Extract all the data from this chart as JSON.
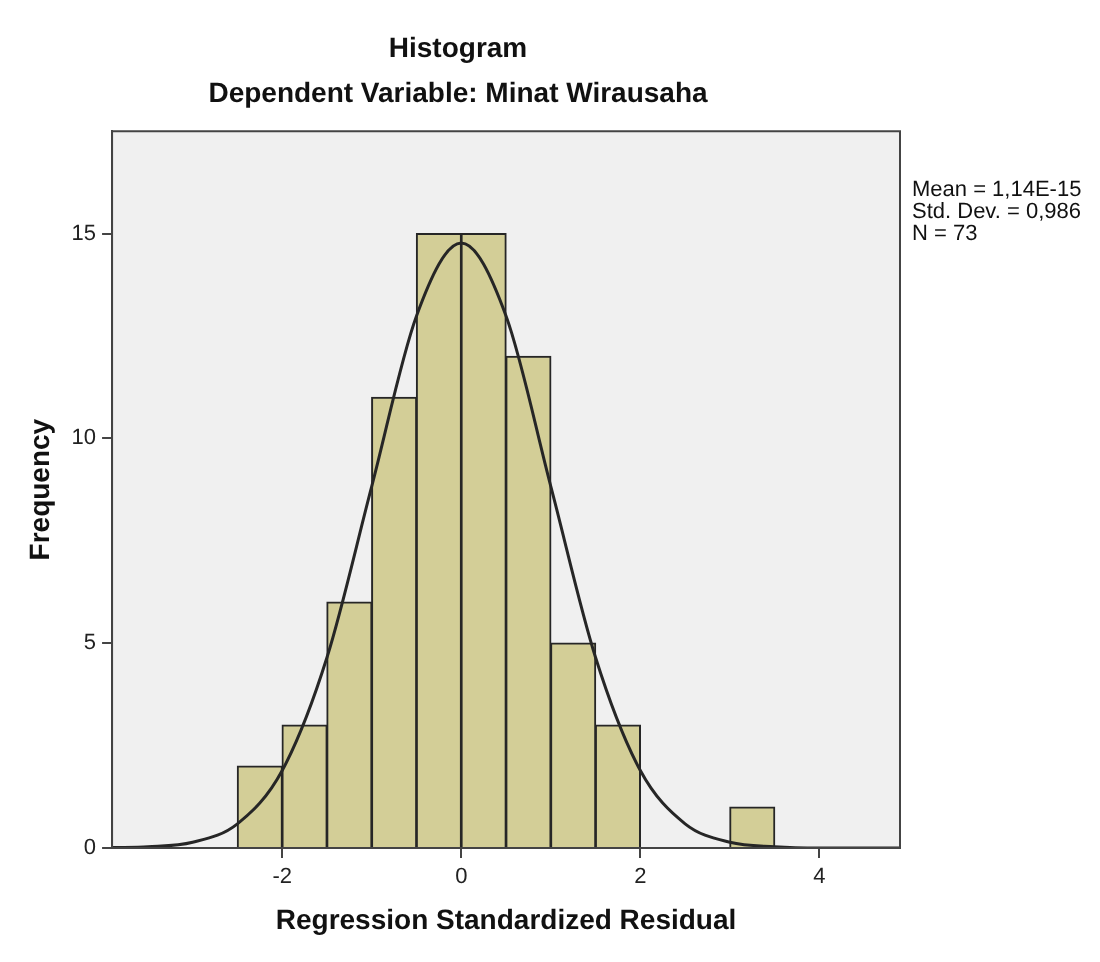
{
  "chart_data": {
    "type": "histogram",
    "title": "Histogram",
    "subtitle": "Dependent Variable: Minat Wirausaha",
    "xlabel": "Regression Standardized Residual",
    "ylabel": "Frequency",
    "bins": [
      -2.5,
      -2,
      -1.5,
      -1,
      -0.5,
      0,
      0.5,
      1,
      1.5,
      2,
      2.5,
      3,
      3.5
    ],
    "values": [
      2,
      3,
      6,
      11,
      15,
      15,
      12,
      5,
      3,
      0,
      0,
      1
    ],
    "color": "#d3ce97",
    "series": [
      {
        "type": "line",
        "color": "#262626",
        "x": [
          -3.9,
          -3.5,
          -3,
          -2.5,
          -2,
          -1.5,
          -1,
          -0.5,
          0,
          0.5,
          1,
          1.5,
          2,
          2.5,
          3,
          3.5,
          4,
          4.5,
          4.9
        ],
        "values": [
          0.01,
          0.03,
          0.14,
          0.59,
          1.89,
          4.65,
          8.83,
          12.99,
          14.77,
          12.99,
          8.83,
          4.65,
          1.89,
          0.59,
          0.14,
          0.03,
          0,
          0,
          0
        ]
      }
    ],
    "xlim": [
      -3.9,
      4.9
    ],
    "xticks": [
      -2,
      0,
      2,
      4
    ],
    "ylim": [
      0,
      17.5
    ],
    "yticks": [
      0,
      5,
      10,
      15
    ],
    "grid": false,
    "legend": false,
    "marker": "none",
    "line_style": "solid",
    "annotations": [
      "Mean = 1,14E-15",
      "Std. Dev. = 0,986",
      "N = 73"
    ]
  }
}
